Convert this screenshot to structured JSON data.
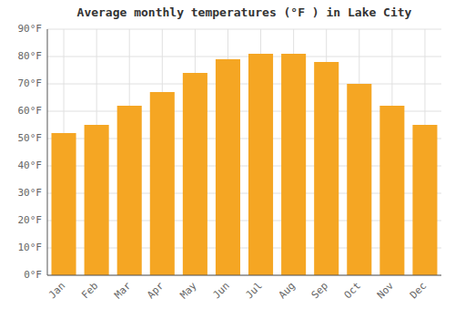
{
  "chart_data": {
    "type": "bar",
    "title": "Average monthly temperatures (°F ) in Lake City",
    "categories": [
      "Jan",
      "Feb",
      "Mar",
      "Apr",
      "May",
      "Jun",
      "Jul",
      "Aug",
      "Sep",
      "Oct",
      "Nov",
      "Dec"
    ],
    "values": [
      52,
      55,
      62,
      67,
      74,
      79,
      81,
      81,
      78,
      70,
      62,
      55
    ],
    "color": "#F5A623",
    "ylim": [
      0,
      90
    ],
    "yticks": [
      {
        "value": 0,
        "label": "0°F"
      },
      {
        "value": 10,
        "label": "10°F"
      },
      {
        "value": 20,
        "label": "20°F"
      },
      {
        "value": 30,
        "label": "30°F"
      },
      {
        "value": 40,
        "label": "40°F"
      },
      {
        "value": 50,
        "label": "50°F"
      },
      {
        "value": 60,
        "label": "60°F"
      },
      {
        "value": 70,
        "label": "70°F"
      },
      {
        "value": 80,
        "label": "80°F"
      },
      {
        "value": 90,
        "label": "90°F"
      }
    ],
    "grid": true
  }
}
